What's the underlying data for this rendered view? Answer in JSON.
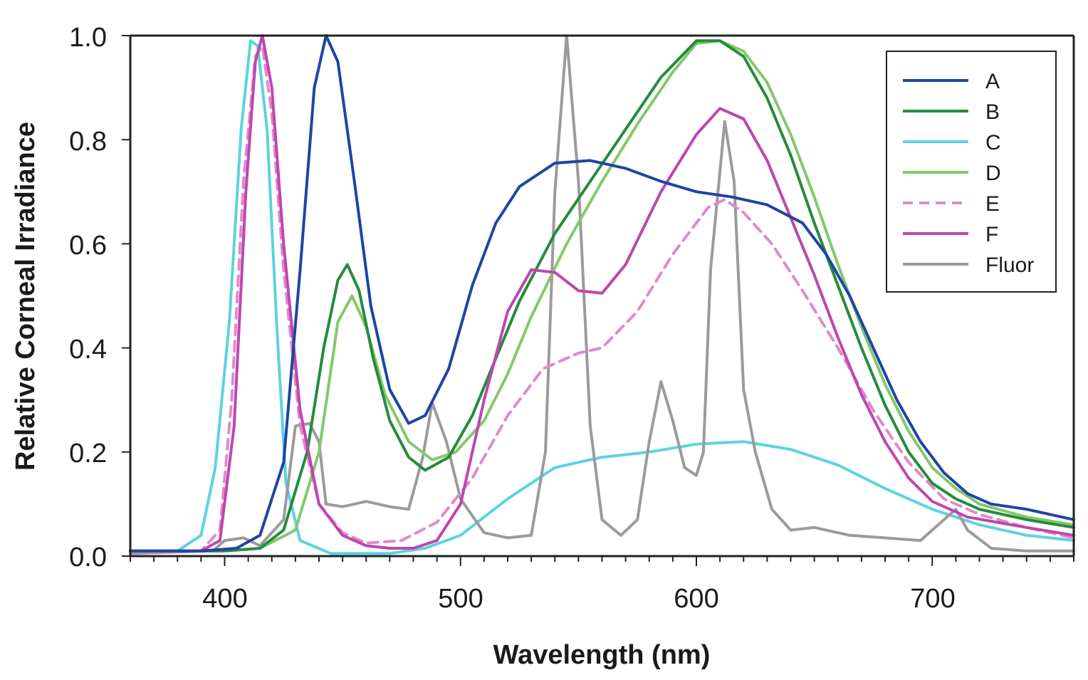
{
  "chart_data": {
    "type": "line",
    "title": "",
    "xlabel": "Wavelength (nm)",
    "ylabel": "Relative Corneal Irradiance",
    "xlim": [
      360,
      760
    ],
    "ylim": [
      0.0,
      1.0
    ],
    "xticks": [
      400,
      500,
      600,
      700
    ],
    "xtick_labels": [
      "400",
      "500",
      "600",
      "700"
    ],
    "yticks": [
      0.0,
      0.2,
      0.4,
      0.6,
      0.8,
      1.0
    ],
    "ytick_labels": [
      "0.0",
      "0.2",
      "0.4",
      "0.6",
      "0.8",
      "1.0"
    ],
    "grid": false,
    "legend_position": "top-right",
    "series": [
      {
        "name": "A",
        "color": "#1f45a3",
        "dash": false,
        "points": [
          [
            360,
            0.01
          ],
          [
            390,
            0.01
          ],
          [
            405,
            0.015
          ],
          [
            415,
            0.04
          ],
          [
            425,
            0.18
          ],
          [
            432,
            0.55
          ],
          [
            438,
            0.9
          ],
          [
            443,
            1.0
          ],
          [
            448,
            0.95
          ],
          [
            455,
            0.72
          ],
          [
            462,
            0.48
          ],
          [
            470,
            0.32
          ],
          [
            478,
            0.255
          ],
          [
            485,
            0.27
          ],
          [
            495,
            0.36
          ],
          [
            505,
            0.52
          ],
          [
            515,
            0.64
          ],
          [
            525,
            0.71
          ],
          [
            540,
            0.755
          ],
          [
            555,
            0.76
          ],
          [
            570,
            0.745
          ],
          [
            585,
            0.72
          ],
          [
            600,
            0.7
          ],
          [
            615,
            0.69
          ],
          [
            630,
            0.675
          ],
          [
            645,
            0.64
          ],
          [
            655,
            0.58
          ],
          [
            665,
            0.5
          ],
          [
            675,
            0.4
          ],
          [
            685,
            0.3
          ],
          [
            695,
            0.22
          ],
          [
            705,
            0.16
          ],
          [
            715,
            0.12
          ],
          [
            725,
            0.1
          ],
          [
            740,
            0.09
          ],
          [
            760,
            0.07
          ]
        ]
      },
      {
        "name": "B",
        "color": "#258c3b",
        "dash": false,
        "points": [
          [
            360,
            0.01
          ],
          [
            400,
            0.01
          ],
          [
            415,
            0.015
          ],
          [
            425,
            0.05
          ],
          [
            435,
            0.2
          ],
          [
            442,
            0.4
          ],
          [
            448,
            0.53
          ],
          [
            452,
            0.56
          ],
          [
            457,
            0.51
          ],
          [
            463,
            0.38
          ],
          [
            470,
            0.26
          ],
          [
            478,
            0.19
          ],
          [
            485,
            0.165
          ],
          [
            495,
            0.19
          ],
          [
            505,
            0.27
          ],
          [
            515,
            0.38
          ],
          [
            525,
            0.49
          ],
          [
            540,
            0.62
          ],
          [
            555,
            0.72
          ],
          [
            570,
            0.82
          ],
          [
            585,
            0.92
          ],
          [
            600,
            0.99
          ],
          [
            610,
            0.99
          ],
          [
            620,
            0.96
          ],
          [
            630,
            0.88
          ],
          [
            640,
            0.77
          ],
          [
            650,
            0.64
          ],
          [
            660,
            0.52
          ],
          [
            670,
            0.4
          ],
          [
            680,
            0.29
          ],
          [
            690,
            0.2
          ],
          [
            700,
            0.14
          ],
          [
            710,
            0.11
          ],
          [
            720,
            0.09
          ],
          [
            740,
            0.07
          ],
          [
            760,
            0.055
          ]
        ]
      },
      {
        "name": "C",
        "color": "#5cd3e0",
        "dash": false,
        "points": [
          [
            360,
            0.01
          ],
          [
            380,
            0.01
          ],
          [
            390,
            0.04
          ],
          [
            396,
            0.17
          ],
          [
            402,
            0.45
          ],
          [
            407,
            0.82
          ],
          [
            411,
            0.99
          ],
          [
            414,
            0.98
          ],
          [
            418,
            0.82
          ],
          [
            422,
            0.45
          ],
          [
            426,
            0.14
          ],
          [
            432,
            0.03
          ],
          [
            445,
            0.005
          ],
          [
            470,
            0.005
          ],
          [
            485,
            0.015
          ],
          [
            500,
            0.04
          ],
          [
            520,
            0.11
          ],
          [
            540,
            0.17
          ],
          [
            560,
            0.19
          ],
          [
            580,
            0.2
          ],
          [
            600,
            0.215
          ],
          [
            620,
            0.22
          ],
          [
            640,
            0.205
          ],
          [
            660,
            0.175
          ],
          [
            680,
            0.13
          ],
          [
            700,
            0.09
          ],
          [
            720,
            0.06
          ],
          [
            740,
            0.04
          ],
          [
            760,
            0.03
          ]
        ]
      },
      {
        "name": "D",
        "color": "#82c96b",
        "dash": false,
        "points": [
          [
            360,
            0.01
          ],
          [
            400,
            0.01
          ],
          [
            415,
            0.015
          ],
          [
            430,
            0.05
          ],
          [
            440,
            0.2
          ],
          [
            448,
            0.45
          ],
          [
            454,
            0.5
          ],
          [
            460,
            0.44
          ],
          [
            468,
            0.31
          ],
          [
            478,
            0.22
          ],
          [
            488,
            0.185
          ],
          [
            498,
            0.2
          ],
          [
            510,
            0.26
          ],
          [
            520,
            0.35
          ],
          [
            530,
            0.46
          ],
          [
            545,
            0.6
          ],
          [
            560,
            0.72
          ],
          [
            575,
            0.83
          ],
          [
            590,
            0.93
          ],
          [
            600,
            0.985
          ],
          [
            610,
            0.99
          ],
          [
            620,
            0.97
          ],
          [
            630,
            0.91
          ],
          [
            640,
            0.81
          ],
          [
            650,
            0.69
          ],
          [
            660,
            0.56
          ],
          [
            670,
            0.44
          ],
          [
            680,
            0.33
          ],
          [
            690,
            0.24
          ],
          [
            700,
            0.17
          ],
          [
            710,
            0.13
          ],
          [
            720,
            0.1
          ],
          [
            740,
            0.075
          ],
          [
            760,
            0.06
          ]
        ]
      },
      {
        "name": "E",
        "color": "#e08ac9",
        "dash": true,
        "points": [
          [
            360,
            0.01
          ],
          [
            390,
            0.01
          ],
          [
            398,
            0.05
          ],
          [
            403,
            0.3
          ],
          [
            408,
            0.72
          ],
          [
            413,
            0.96
          ],
          [
            416,
            0.98
          ],
          [
            420,
            0.85
          ],
          [
            425,
            0.55
          ],
          [
            432,
            0.25
          ],
          [
            440,
            0.1
          ],
          [
            450,
            0.045
          ],
          [
            460,
            0.025
          ],
          [
            475,
            0.03
          ],
          [
            490,
            0.065
          ],
          [
            505,
            0.15
          ],
          [
            520,
            0.27
          ],
          [
            535,
            0.36
          ],
          [
            550,
            0.39
          ],
          [
            560,
            0.4
          ],
          [
            575,
            0.47
          ],
          [
            590,
            0.58
          ],
          [
            605,
            0.67
          ],
          [
            612,
            0.685
          ],
          [
            620,
            0.66
          ],
          [
            632,
            0.6
          ],
          [
            645,
            0.51
          ],
          [
            660,
            0.4
          ],
          [
            675,
            0.28
          ],
          [
            690,
            0.18
          ],
          [
            705,
            0.11
          ],
          [
            720,
            0.08
          ],
          [
            740,
            0.055
          ],
          [
            760,
            0.035
          ]
        ]
      },
      {
        "name": "F",
        "color": "#bd47b0",
        "dash": false,
        "points": [
          [
            360,
            0.01
          ],
          [
            390,
            0.01
          ],
          [
            398,
            0.03
          ],
          [
            404,
            0.25
          ],
          [
            409,
            0.7
          ],
          [
            413,
            0.95
          ],
          [
            416,
            1.0
          ],
          [
            420,
            0.9
          ],
          [
            425,
            0.6
          ],
          [
            432,
            0.28
          ],
          [
            440,
            0.1
          ],
          [
            450,
            0.04
          ],
          [
            460,
            0.02
          ],
          [
            470,
            0.015
          ],
          [
            480,
            0.015
          ],
          [
            490,
            0.03
          ],
          [
            500,
            0.1
          ],
          [
            510,
            0.3
          ],
          [
            520,
            0.47
          ],
          [
            530,
            0.55
          ],
          [
            540,
            0.545
          ],
          [
            550,
            0.51
          ],
          [
            560,
            0.505
          ],
          [
            570,
            0.56
          ],
          [
            585,
            0.7
          ],
          [
            600,
            0.81
          ],
          [
            610,
            0.86
          ],
          [
            620,
            0.84
          ],
          [
            630,
            0.76
          ],
          [
            640,
            0.65
          ],
          [
            650,
            0.54
          ],
          [
            660,
            0.42
          ],
          [
            670,
            0.31
          ],
          [
            680,
            0.22
          ],
          [
            690,
            0.15
          ],
          [
            700,
            0.105
          ],
          [
            715,
            0.075
          ],
          [
            740,
            0.055
          ],
          [
            760,
            0.04
          ]
        ]
      },
      {
        "name": "Fluor",
        "color": "#9b9b9d",
        "dash": false,
        "points": [
          [
            360,
            0.005
          ],
          [
            395,
            0.01
          ],
          [
            400,
            0.03
          ],
          [
            408,
            0.035
          ],
          [
            415,
            0.02
          ],
          [
            425,
            0.07
          ],
          [
            430,
            0.25
          ],
          [
            436,
            0.255
          ],
          [
            440,
            0.22
          ],
          [
            443,
            0.1
          ],
          [
            450,
            0.095
          ],
          [
            460,
            0.105
          ],
          [
            470,
            0.095
          ],
          [
            478,
            0.09
          ],
          [
            484,
            0.19
          ],
          [
            488,
            0.295
          ],
          [
            494,
            0.22
          ],
          [
            500,
            0.11
          ],
          [
            510,
            0.045
          ],
          [
            520,
            0.035
          ],
          [
            530,
            0.04
          ],
          [
            536,
            0.2
          ],
          [
            540,
            0.7
          ],
          [
            545,
            1.0
          ],
          [
            550,
            0.72
          ],
          [
            555,
            0.25
          ],
          [
            560,
            0.07
          ],
          [
            568,
            0.04
          ],
          [
            575,
            0.07
          ],
          [
            580,
            0.22
          ],
          [
            585,
            0.335
          ],
          [
            590,
            0.26
          ],
          [
            595,
            0.17
          ],
          [
            600,
            0.155
          ],
          [
            603,
            0.2
          ],
          [
            606,
            0.55
          ],
          [
            612,
            0.835
          ],
          [
            616,
            0.72
          ],
          [
            620,
            0.32
          ],
          [
            625,
            0.2
          ],
          [
            632,
            0.09
          ],
          [
            640,
            0.05
          ],
          [
            650,
            0.055
          ],
          [
            665,
            0.04
          ],
          [
            680,
            0.035
          ],
          [
            695,
            0.03
          ],
          [
            705,
            0.07
          ],
          [
            710,
            0.09
          ],
          [
            715,
            0.05
          ],
          [
            725,
            0.015
          ],
          [
            740,
            0.01
          ],
          [
            760,
            0.01
          ]
        ]
      }
    ]
  }
}
